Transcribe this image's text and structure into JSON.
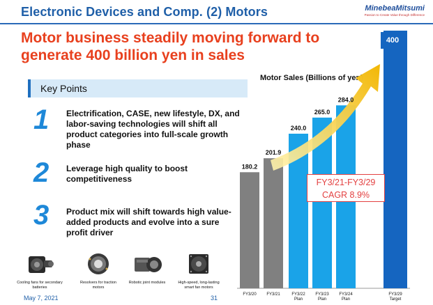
{
  "header": {
    "title": "Electronic Devices and Comp. (2) Motors",
    "brand": "MinebeaMitsumi",
    "tagline": "Passion to Create Value through Difference"
  },
  "headline": "Motor business steadily moving forward to generate 400 billion yen in sales",
  "key_points": {
    "label": "Key Points",
    "items": [
      {
        "num": "1",
        "text": "Electrification, CASE, new lifestyle, DX, and labor-saving technologies will shift all product categories into full-scale growth phase"
      },
      {
        "num": "2",
        "text": "Leverage high quality to boost competitiveness"
      },
      {
        "num": "3",
        "text": "Product mix will shift towards high value-added products and evolve into a sure profit driver"
      }
    ]
  },
  "products": [
    {
      "label": "Cooling fans for secondary batteries",
      "icon": "cooling-fan-icon"
    },
    {
      "label": "Resolvers for traction motors",
      "icon": "resolver-icon"
    },
    {
      "label": "Robotic joint modules",
      "icon": "robotic-joint-icon"
    },
    {
      "label": "High-speed, long-lasting smart fan motors",
      "icon": "fan-motor-icon"
    }
  ],
  "footer": {
    "date": "May 7, 2021",
    "page": "31"
  },
  "cagr": {
    "line1": "FY3/21-FY3/29",
    "line2": "CAGR  8.9%"
  },
  "chart_data": {
    "type": "bar",
    "title": "Motor Sales (Billions of yen)",
    "categories": [
      "FY3/20",
      "FY3/21",
      "FY3/22 Plan",
      "FY3/23 Plan",
      "FY3/24 Plan",
      "FY3/29 Target"
    ],
    "values": [
      180.2,
      201.9,
      240.0,
      265.0,
      284.0,
      400
    ],
    "value_labels": [
      "180.2",
      "201.9",
      "240.0",
      "265.0",
      "284.0",
      "400"
    ],
    "colors": [
      "#808080",
      "#808080",
      "#1aa3e8",
      "#1aa3e8",
      "#1aa3e8",
      "#1565c0"
    ],
    "ylim": [
      0,
      400
    ]
  }
}
